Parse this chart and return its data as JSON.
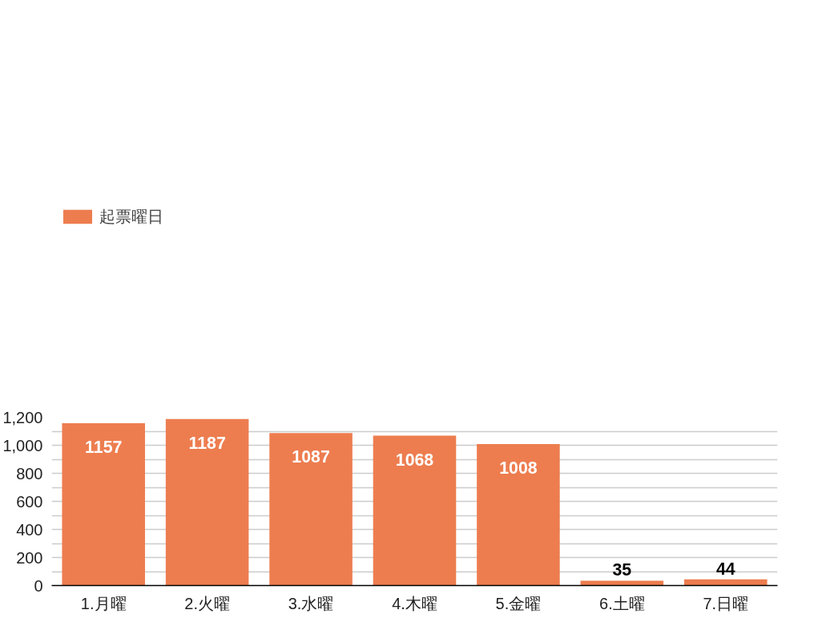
{
  "chart_data": {
    "type": "bar",
    "categories": [
      "1.月曜",
      "2.火曜",
      "3.水曜",
      "4.木曜",
      "5.金曜",
      "6.土曜",
      "7.日曜"
    ],
    "series": [
      {
        "name": "起票曜日",
        "color": "#ed7d4f",
        "values": [
          1157,
          1187,
          1087,
          1068,
          1008,
          35,
          44
        ]
      }
    ],
    "ylim": [
      0,
      1200
    ],
    "yticks": [
      0,
      {
        "value": 100,
        "label": null
      },
      {
        "value": 200,
        "label": "200"
      },
      {
        "value": 300,
        "label": null
      },
      {
        "value": 400,
        "label": "400"
      },
      {
        "value": 500,
        "label": null
      },
      {
        "value": 600,
        "label": "600"
      },
      {
        "value": 700,
        "label": null
      },
      {
        "value": 800,
        "label": "800"
      },
      {
        "value": 900,
        "label": null
      },
      {
        "value": 1000,
        "label": "1,000"
      },
      {
        "value": 1100,
        "label": null
      },
      {
        "value": 1200,
        "label": "1,200"
      }
    ],
    "grid": "y",
    "legend": "top left",
    "data_labels": true
  }
}
